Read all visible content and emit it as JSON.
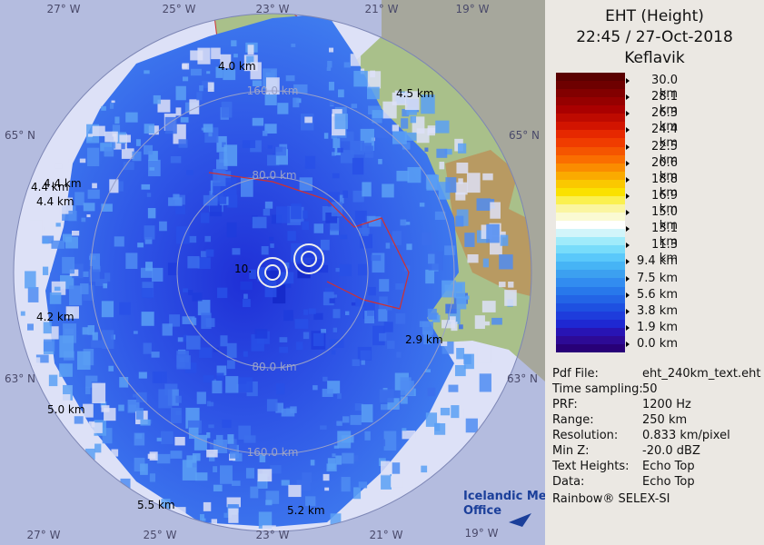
{
  "header": {
    "title": "EHT (Height)",
    "time": "22:45 / 27-Oct-2018",
    "station": "Keflavik"
  },
  "legend": {
    "colors": [
      "#5a0000",
      "#6e0000",
      "#820000",
      "#960000",
      "#aa0000",
      "#be0a00",
      "#d21400",
      "#e62800",
      "#f03c00",
      "#f55500",
      "#fa6e00",
      "#fa8c00",
      "#faaa00",
      "#fac800",
      "#fae100",
      "#faf050",
      "#faf5a0",
      "#fafad2",
      "#ffffff",
      "#d2f5fa",
      "#a0ebfa",
      "#78dcfa",
      "#5ac8fa",
      "#46b4f5",
      "#3ca0f0",
      "#328cf0",
      "#2878eb",
      "#2364e6",
      "#1e50e1",
      "#1e3cdc",
      "#1e28d2",
      "#2814b4",
      "#2d0a96",
      "#280078"
    ],
    "labels": [
      "30.0 km",
      "28.1 km",
      "26.3 km",
      "24.4 km",
      "22.5 km",
      "20.6 km",
      "18.8 km",
      "16.9 km",
      "15.0 km",
      "13.1 km",
      "11.3 km",
      "9.4 km",
      "7.5 km",
      "5.6 km",
      "3.8 km",
      "1.9 km",
      "0.0 km"
    ]
  },
  "info": {
    "rows": [
      [
        "Pdf File:",
        "eht_240km_text.eht"
      ],
      [
        "Time sampling:",
        "50"
      ],
      [
        "PRF:",
        "1200 Hz"
      ],
      [
        "Range:",
        "250 km"
      ],
      [
        "Resolution:",
        "0.833 km/pixel"
      ],
      [
        "Min Z:",
        "-20.0 dBZ"
      ],
      [
        "Text Heights:",
        "Echo Top"
      ],
      [
        "Data:",
        "Echo Top"
      ]
    ],
    "credit": "Rainbow® SELEX-SI"
  },
  "map": {
    "grid_labels": [
      "27° W",
      "25° W",
      "23° W",
      "21° W",
      "19° W",
      "27° W",
      "25° W",
      "23° W",
      "21° W",
      "19° W",
      "65° N",
      "65° N",
      "63° N",
      "63° N"
    ],
    "ring_labels": [
      "80.0 km",
      "160.0 km",
      "80.0 km",
      "160.0 km"
    ],
    "height_labels": [
      "4.0 km",
      "4.5 km",
      "4.4 km",
      "4.4 km",
      "4.4 km",
      "10.",
      "4.2 km",
      "2.9 km",
      "5.0 km",
      "5.5 km",
      "5.2 km"
    ]
  },
  "logo": [
    "Icelandic Met",
    "Office"
  ]
}
